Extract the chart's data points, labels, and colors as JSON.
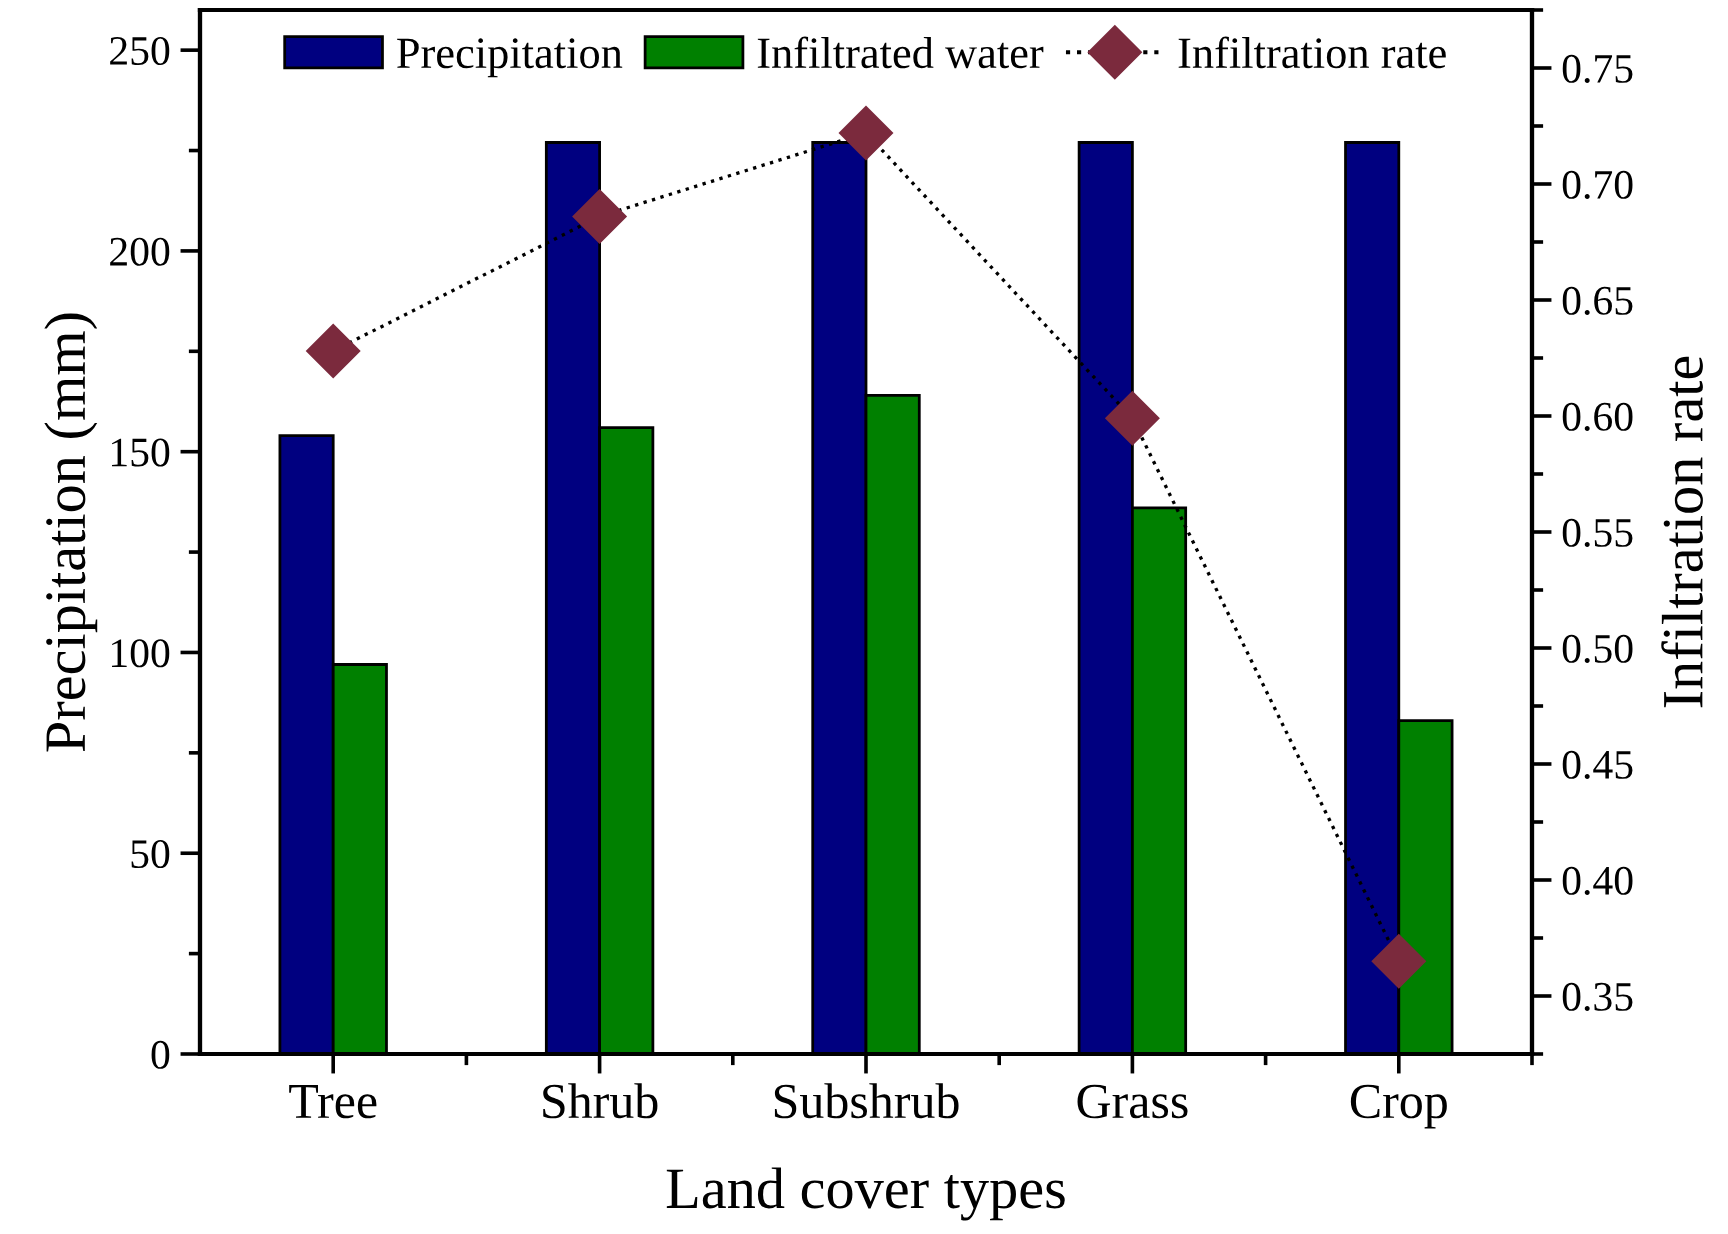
{
  "chart_data": {
    "type": "bar",
    "xlabel": "Land cover types",
    "ylabel": "Precipitation (mm)",
    "y2label": "Infiltration rate",
    "categories": [
      "Tree",
      "Shrub",
      "Subshrub",
      "Grass",
      "Crop"
    ],
    "series": [
      {
        "name": "Precipitation",
        "color": "#000080",
        "values": [
          154,
          227,
          227,
          227,
          227
        ]
      },
      {
        "name": "Infiltrated water",
        "color": "#008000",
        "values": [
          97,
          156,
          164,
          136,
          83
        ]
      },
      {
        "name": "Infiltration rate",
        "type": "line",
        "axis": "y2",
        "color": "#7b2a3d",
        "marker": "diamond",
        "line_style": "dotted",
        "values": [
          0.628,
          0.686,
          0.722,
          0.599,
          0.365
        ]
      }
    ],
    "ylim": [
      0,
      260
    ],
    "yticks": [
      0,
      50,
      100,
      150,
      200,
      250
    ],
    "y2lim": [
      0.325,
      0.775
    ],
    "y2ticks": [
      {
        "value": 0.35,
        "label": "0.35"
      },
      {
        "value": 0.4,
        "label": "0.40"
      },
      {
        "value": 0.45,
        "label": "0.45"
      },
      {
        "value": 0.5,
        "label": "0.50"
      },
      {
        "value": 0.55,
        "label": "0.55"
      },
      {
        "value": 0.6,
        "label": "0.60"
      },
      {
        "value": 0.65,
        "label": "0.65"
      },
      {
        "value": 0.7,
        "label": "0.70"
      },
      {
        "value": 0.75,
        "label": "0.75"
      }
    ],
    "grid": false,
    "legend": "top"
  }
}
